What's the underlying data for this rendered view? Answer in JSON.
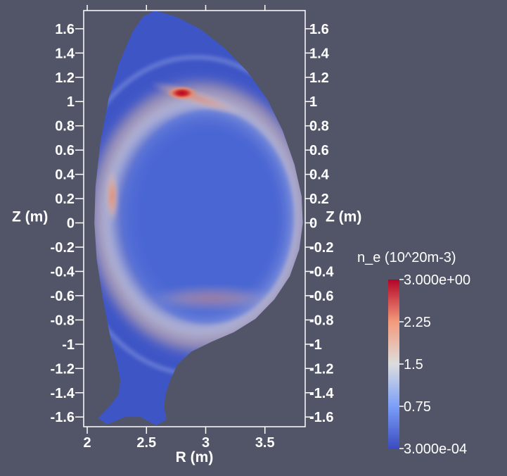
{
  "chart_data": {
    "type": "heatmap",
    "title": "",
    "xlabel": "R (m)",
    "ylabel": "Z (m)",
    "xlim": [
      1.97,
      3.84
    ],
    "ylim": [
      -1.68,
      1.75
    ],
    "x_ticks": [
      "2",
      "2.5",
      "3",
      "3.5"
    ],
    "x_tick_values": [
      2,
      2.5,
      3,
      3.5
    ],
    "y_ticks": [
      "1.6",
      "1.4",
      "1.2",
      "1",
      "0.8",
      "0.6",
      "0.4",
      "0.2",
      "0",
      "-0.2",
      "-0.4",
      "-0.6",
      "-0.8",
      "-1",
      "-1.2",
      "-1.4",
      "-1.6"
    ],
    "y_tick_values": [
      1.6,
      1.4,
      1.2,
      1,
      0.8,
      0.6,
      0.4,
      0.2,
      0,
      -0.2,
      -0.4,
      -0.6,
      -0.8,
      -1,
      -1.2,
      -1.4,
      -1.6
    ],
    "colorbar": {
      "title": "n_e (10^20m-3)",
      "min": 0.0003,
      "max": 3.0,
      "labels": [
        "3.000e+00",
        "2.25",
        "1.5",
        "0.75",
        "3.000e-04"
      ],
      "label_values": [
        3.0,
        2.25,
        1.5,
        0.75,
        0.0003
      ],
      "colormap": "blue-white-red (cool to warm)",
      "colors": [
        "#3b4cc0",
        "#dddddd",
        "#b40426"
      ]
    },
    "features": [
      {
        "name": "hot spot near upper X region",
        "R": 2.8,
        "Z": 1.07,
        "n_e": 3.0
      },
      {
        "name": "inboard midplane band",
        "R": 2.2,
        "Z": 0.2,
        "n_e": 2.0
      },
      {
        "name": "edge ring",
        "n_e": 1.4
      },
      {
        "name": "core",
        "n_e": 0.5
      }
    ],
    "grid": false,
    "legend": "right"
  },
  "colors": {
    "background": "#525568",
    "axis": "#ffffff",
    "core": "#4a65d2",
    "edge": "#3e55c6"
  }
}
